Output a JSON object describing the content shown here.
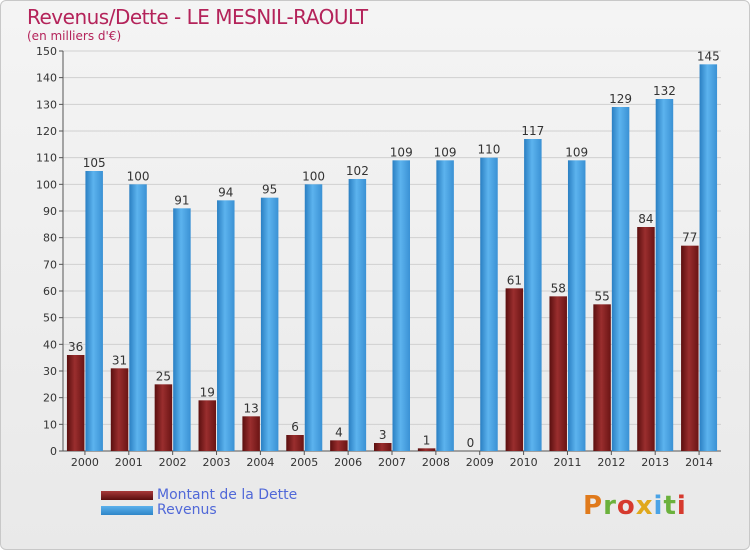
{
  "header": {
    "title": "Revenus/Dette - LE MESNIL-RAOULT",
    "subtitle": "(en milliers d'€)"
  },
  "legend": {
    "items": [
      {
        "label": "Montant de la Dette",
        "color": "#7a1a1a"
      },
      {
        "label": "Revenus",
        "color": "#4aa3e6"
      }
    ]
  },
  "logo": {
    "text": "Proxiti",
    "colors": [
      "#e07a1c",
      "#6bb13c",
      "#d63a2e",
      "#e0a81c",
      "#4aa3e6",
      "#6bb13c",
      "#d63a2e"
    ]
  },
  "colors": {
    "debt": "#7a1a1a",
    "debt_light": "#a83a3a",
    "revenue": "#2f86c8",
    "revenue_light": "#5cb0ec",
    "title": "#b4235a",
    "grid": "#d0d0d0"
  },
  "chart_data": {
    "type": "bar",
    "title": "Revenus/Dette - LE MESNIL-RAOULT",
    "subtitle": "(en milliers d'€)",
    "categories": [
      "2000",
      "2001",
      "2002",
      "2003",
      "2004",
      "2005",
      "2006",
      "2007",
      "2008",
      "2009",
      "2010",
      "2011",
      "2012",
      "2013",
      "2014"
    ],
    "series": [
      {
        "name": "Montant de la Dette",
        "values": [
          36,
          31,
          25,
          19,
          13,
          6,
          4,
          3,
          1,
          0,
          61,
          58,
          55,
          84,
          77
        ]
      },
      {
        "name": "Revenus",
        "values": [
          105,
          100,
          91,
          94,
          95,
          100,
          102,
          109,
          109,
          110,
          117,
          109,
          129,
          132,
          145
        ]
      }
    ],
    "ylim": [
      0,
      150
    ],
    "yticks": [
      0,
      10,
      20,
      30,
      40,
      50,
      60,
      70,
      80,
      90,
      100,
      110,
      120,
      130,
      140,
      150
    ],
    "grid": true,
    "legend": "bottom-left"
  }
}
